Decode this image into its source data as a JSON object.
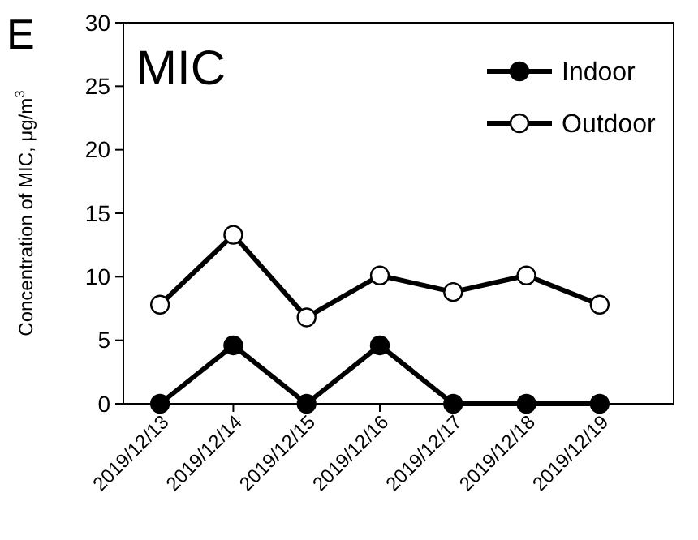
{
  "chart_data": {
    "type": "line",
    "title": "MIC",
    "ylabel": "Concentration of MIC, μg/m$^{3}$",
    "annotations": [
      "E"
    ],
    "categories": [
      "2019/12/13",
      "2019/12/14",
      "2019/12/15",
      "2019/12/16",
      "2019/12/17",
      "2019/12/18",
      "2019/12/19"
    ],
    "series": [
      {
        "name": "Indoor",
        "color": "#000000",
        "values": [
          0,
          4.6,
          0,
          4.6,
          0,
          0,
          0
        ]
      },
      {
        "name": "Outdoor",
        "color": "#000000",
        "values": [
          7.8,
          13.3,
          6.8,
          10.1,
          8.8,
          10.1,
          7.8
        ]
      }
    ],
    "ylim": [
      0,
      30
    ],
    "yticks": [
      0,
      5,
      10,
      15,
      20,
      25,
      30
    ],
    "grid": false,
    "legend": "top right",
    "line_style": "solid",
    "marker": "circle"
  }
}
